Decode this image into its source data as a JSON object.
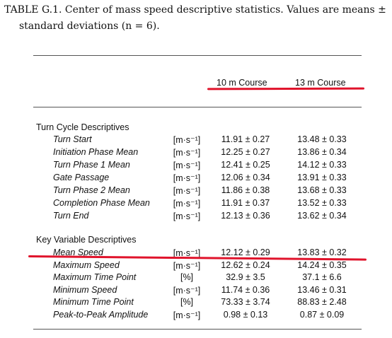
{
  "caption": {
    "line1": "TABLE G.1. Center of mass speed descriptive statistics. Values are means ±",
    "line2": "standard deviations (n = 6)."
  },
  "columns": [
    "10 m Course",
    "13 m Course"
  ],
  "sections": [
    {
      "title": "Turn Cycle Descriptives",
      "rows": [
        {
          "label": "Turn Start",
          "unit": "[m·s⁻¹]",
          "v1": "11.91 ± 0.27",
          "v2": "13.48 ± 0.33"
        },
        {
          "label": "Initiation Phase Mean",
          "unit": "[m·s⁻¹]",
          "v1": "12.25 ± 0.27",
          "v2": "13.86 ± 0.34"
        },
        {
          "label": "Turn Phase 1 Mean",
          "unit": "[m·s⁻¹]",
          "v1": "12.41 ± 0.25",
          "v2": "14.12 ± 0.33"
        },
        {
          "label": "Gate Passage",
          "unit": "[m·s⁻¹]",
          "v1": "12.06 ± 0.34",
          "v2": "13.91 ± 0.33"
        },
        {
          "label": "Turn Phase 2 Mean",
          "unit": "[m·s⁻¹]",
          "v1": "11.86 ± 0.38",
          "v2": "13.68 ± 0.33"
        },
        {
          "label": "Completion Phase Mean",
          "unit": "[m·s⁻¹]",
          "v1": "11.91 ± 0.37",
          "v2": "13.52 ± 0.33"
        },
        {
          "label": "Turn End",
          "unit": "[m·s⁻¹]",
          "v1": "12.13 ± 0.36",
          "v2": "13.62 ± 0.34"
        }
      ]
    },
    {
      "title": "Key Variable Descriptives",
      "rows": [
        {
          "label": "Mean Speed",
          "unit": "[m·s⁻¹]",
          "v1": "12.12 ± 0.29",
          "v2": "13.83 ± 0.32"
        },
        {
          "label": "Maximum Speed",
          "unit": "[m·s⁻¹]",
          "v1": "12.62 ± 0.24",
          "v2": "14.24 ± 0.35"
        },
        {
          "label": "Maximum Time Point",
          "unit": "[%]",
          "v1": "32.9 ± 3.5",
          "v2": "37.1 ± 6.6"
        },
        {
          "label": "Minimum Speed",
          "unit": "[m·s⁻¹]",
          "v1": "11.74 ± 0.36",
          "v2": "13.46 ± 0.31"
        },
        {
          "label": "Minimum Time Point",
          "unit": "[%]",
          "v1": "73.33 ± 3.74",
          "v2": "88.83 ± 2.48"
        },
        {
          "label": "Peak-to-Peak Amplitude",
          "unit": "[m·s⁻¹]",
          "v1": "0.98 ± 0.13",
          "v2": "0.87 ± 0.09"
        }
      ]
    }
  ],
  "highlight_color": "#e0132b"
}
